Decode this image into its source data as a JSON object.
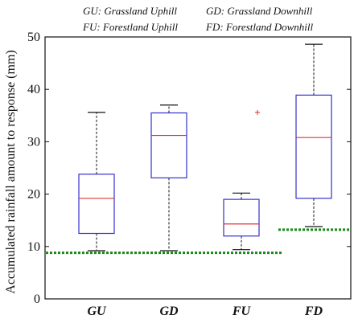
{
  "legend": {
    "gu": "GU: Grassland Uphill",
    "gd": "GD: Grassland Downhill",
    "fu": "FU: Forestland Uphill",
    "fd": "FD: Forestland Downhill"
  },
  "colors": {
    "box": "#3333cc",
    "median": "#e03030",
    "whisker": "#111111",
    "outlier": "#e03030",
    "threshold": "#1a8a1a"
  },
  "chart_data": {
    "type": "box",
    "ylabel": "Accumulated rainfall amount to response (mm)",
    "xlabel": "",
    "ylim": [
      0,
      50
    ],
    "yticks": [
      0,
      10,
      20,
      30,
      40,
      50
    ],
    "categories": [
      "GU",
      "GD",
      "FU",
      "FD"
    ],
    "boxes": [
      {
        "name": "GU",
        "min": 9.2,
        "q1": 12.5,
        "median": 19.2,
        "q3": 23.8,
        "max": 35.6,
        "outliers": []
      },
      {
        "name": "GD",
        "min": 9.2,
        "q1": 23.1,
        "median": 31.2,
        "q3": 35.5,
        "max": 37.0,
        "outliers": []
      },
      {
        "name": "FU",
        "min": 9.4,
        "q1": 12.0,
        "median": 14.3,
        "q3": 19.0,
        "max": 20.2,
        "outliers": [
          35.6
        ]
      },
      {
        "name": "FD",
        "min": 13.8,
        "q1": 19.2,
        "median": 30.8,
        "q3": 38.9,
        "max": 48.6,
        "outliers": []
      }
    ],
    "thresholds": [
      {
        "from": "GU",
        "to": "FU",
        "value": 8.8
      },
      {
        "from": "FD",
        "to": "FD",
        "value": 13.2
      }
    ],
    "grid": false
  }
}
